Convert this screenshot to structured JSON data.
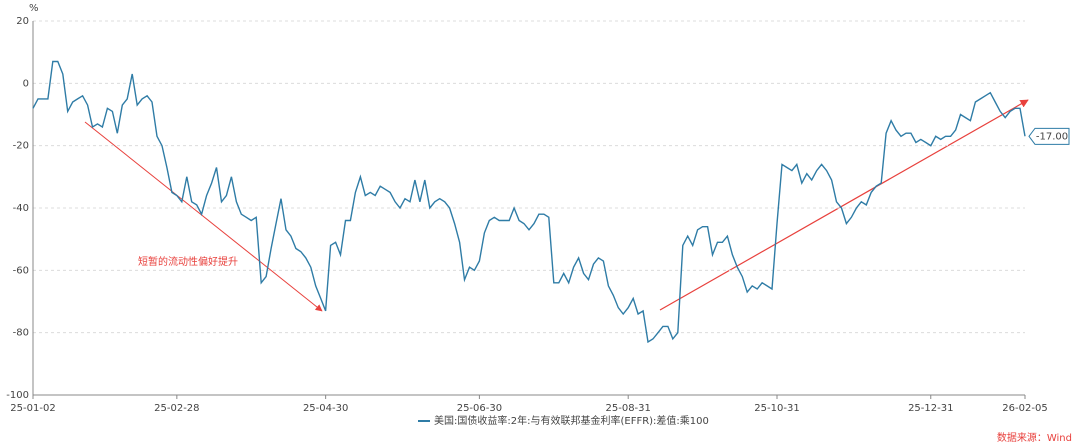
{
  "chart_data": {
    "type": "line",
    "y_label": "%",
    "annotation": "短暂的流动性偏好提升",
    "source": "数据来源：Wind",
    "ylim": [
      -100,
      20
    ],
    "yticks": [
      20,
      0,
      -20,
      -40,
      -60,
      -80,
      -100
    ],
    "grid": true,
    "categories": [
      "25-01-02",
      null,
      null,
      null,
      null,
      null,
      null,
      null,
      null,
      null,
      null,
      null,
      null,
      null,
      null,
      null,
      null,
      null,
      null,
      null,
      null,
      null,
      null,
      null,
      null,
      null,
      null,
      null,
      null,
      "25-02-28",
      null,
      null,
      null,
      null,
      null,
      null,
      null,
      null,
      null,
      null,
      null,
      null,
      null,
      null,
      null,
      null,
      null,
      null,
      null,
      null,
      null,
      null,
      null,
      null,
      null,
      null,
      null,
      null,
      null,
      "25-04-30",
      null,
      null,
      null,
      null,
      null,
      null,
      null,
      null,
      null,
      null,
      null,
      null,
      null,
      null,
      null,
      null,
      null,
      null,
      null,
      null,
      null,
      null,
      null,
      null,
      null,
      null,
      null,
      null,
      null,
      null,
      "25-06-30",
      null,
      null,
      null,
      null,
      null,
      null,
      null,
      null,
      null,
      null,
      null,
      null,
      null,
      null,
      null,
      null,
      null,
      null,
      null,
      null,
      null,
      null,
      null,
      null,
      null,
      null,
      null,
      null,
      null,
      "25-08-31",
      null,
      null,
      null,
      null,
      null,
      null,
      null,
      null,
      null,
      null,
      null,
      null,
      null,
      null,
      null,
      null,
      null,
      null,
      null,
      null,
      null,
      null,
      null,
      null,
      null,
      null,
      null,
      null,
      null,
      "25-10-31",
      null,
      null,
      null,
      null,
      null,
      null,
      null,
      null,
      null,
      null,
      null,
      null,
      null,
      null,
      null,
      null,
      null,
      null,
      null,
      null,
      null,
      null,
      null,
      null,
      null,
      null,
      null,
      null,
      null,
      null,
      "25-12-31",
      null,
      null,
      null,
      null,
      null,
      null,
      null,
      null,
      null,
      null,
      null,
      null,
      null,
      null,
      null,
      null,
      null,
      null,
      "26-02-05"
    ],
    "series": [
      {
        "name": "美国:国债收益率:2年:与有效联邦基金利率(EFFR):差值:乘100",
        "color": "#2f7ca6",
        "values": [
          -8,
          -5,
          -5,
          -5,
          7,
          7,
          3,
          -9,
          -6,
          -5,
          -4,
          -7,
          -14,
          -13,
          -14,
          -8,
          -9,
          -16,
          -7,
          -5,
          3,
          -7,
          -5,
          -4,
          -6,
          -17,
          -20,
          -27,
          -35,
          -36,
          -38,
          -30,
          -38,
          -39,
          -42,
          -36,
          -32,
          -27,
          -38,
          -36,
          -30,
          -38,
          -42,
          -43,
          -44,
          -43,
          -64,
          -62,
          -53,
          -45,
          -37,
          -47,
          -49,
          -53,
          -54,
          -56,
          -59,
          -65,
          -69,
          -73,
          -52,
          -51,
          -55,
          -44,
          -44,
          -35,
          -30,
          -36,
          -35,
          -36,
          -33,
          -34,
          -35,
          -38,
          -40,
          -37,
          -38,
          -31,
          -38,
          -31,
          -40,
          -38,
          -37,
          -38,
          -40,
          -45,
          -51,
          -63,
          -59,
          -60,
          -57,
          -48,
          -44,
          -43,
          -44,
          -44,
          -44,
          -40,
          -44,
          -45,
          -47,
          -45,
          -42,
          -42,
          -43,
          -64,
          -64,
          -61,
          -64,
          -59,
          -56,
          -61,
          -63,
          -58,
          -56,
          -57,
          -65,
          -68,
          -72,
          -74,
          -72,
          -69,
          -74,
          -73,
          -83,
          -82,
          -80,
          -78,
          -78,
          -82,
          -80,
          -52,
          -49,
          -52,
          -47,
          -46,
          -46,
          -55,
          -51,
          -51,
          -49,
          -55,
          -59,
          -62,
          -67,
          -65,
          -66,
          -64,
          -65,
          -66,
          -45,
          -26,
          -27,
          -28,
          -26,
          -32,
          -29,
          -31,
          -28,
          -26,
          -28,
          -31,
          -38,
          -40,
          -45,
          -43,
          -40,
          -38,
          -39,
          -35,
          -33,
          -32,
          -16,
          -12,
          -15,
          -17,
          -16,
          -16,
          -19,
          -18,
          -19,
          -20,
          -17,
          -18,
          -17,
          -17,
          -15,
          -10,
          -11,
          -12,
          -6,
          -5,
          -4,
          -3,
          -6,
          -9,
          -11,
          -9,
          -8,
          -8,
          -17
        ],
        "value_labels": [
          null,
          null,
          null,
          null,
          null,
          null,
          null,
          null,
          null,
          null,
          null,
          null,
          null,
          null,
          null,
          null,
          null,
          null,
          null,
          null,
          null,
          null,
          null,
          null,
          null,
          null,
          null,
          null,
          null,
          null,
          null,
          null,
          null,
          null,
          null,
          null,
          null,
          null,
          null,
          null,
          null,
          null,
          null,
          null,
          null,
          null,
          null,
          null,
          null,
          null,
          null,
          null,
          null,
          null,
          null,
          null,
          null,
          null,
          null,
          null,
          null,
          null,
          null,
          null,
          null,
          null,
          null,
          null,
          null,
          null,
          null,
          null,
          null,
          null,
          null,
          null,
          null,
          null,
          null,
          null,
          null,
          null,
          null,
          null,
          null,
          null,
          null,
          null,
          null,
          null,
          null,
          null,
          null,
          null,
          null,
          null,
          null,
          null,
          null,
          null,
          null,
          null,
          null,
          null,
          null,
          null,
          null,
          null,
          null,
          null,
          null,
          null,
          null,
          null,
          null,
          null,
          null,
          null,
          null,
          null,
          null,
          null,
          null,
          null,
          null,
          null,
          null,
          null,
          null,
          null,
          null,
          null,
          null,
          null,
          null,
          null,
          null,
          null,
          null,
          null,
          null,
          null,
          null,
          null,
          null,
          null,
          null,
          null,
          null,
          null,
          null,
          null,
          null,
          null,
          null,
          null,
          null,
          null,
          null,
          null,
          null,
          null,
          null,
          null,
          null,
          null,
          null,
          null,
          null,
          null,
          null,
          null,
          null,
          null,
          null,
          null,
          null,
          null,
          null,
          null,
          null,
          null,
          null,
          null,
          null,
          null,
          null,
          null,
          null,
          null,
          null,
          null,
          null,
          null,
          null,
          null,
          null,
          null,
          null,
          null,
          "-17.00"
        ]
      }
    ]
  }
}
